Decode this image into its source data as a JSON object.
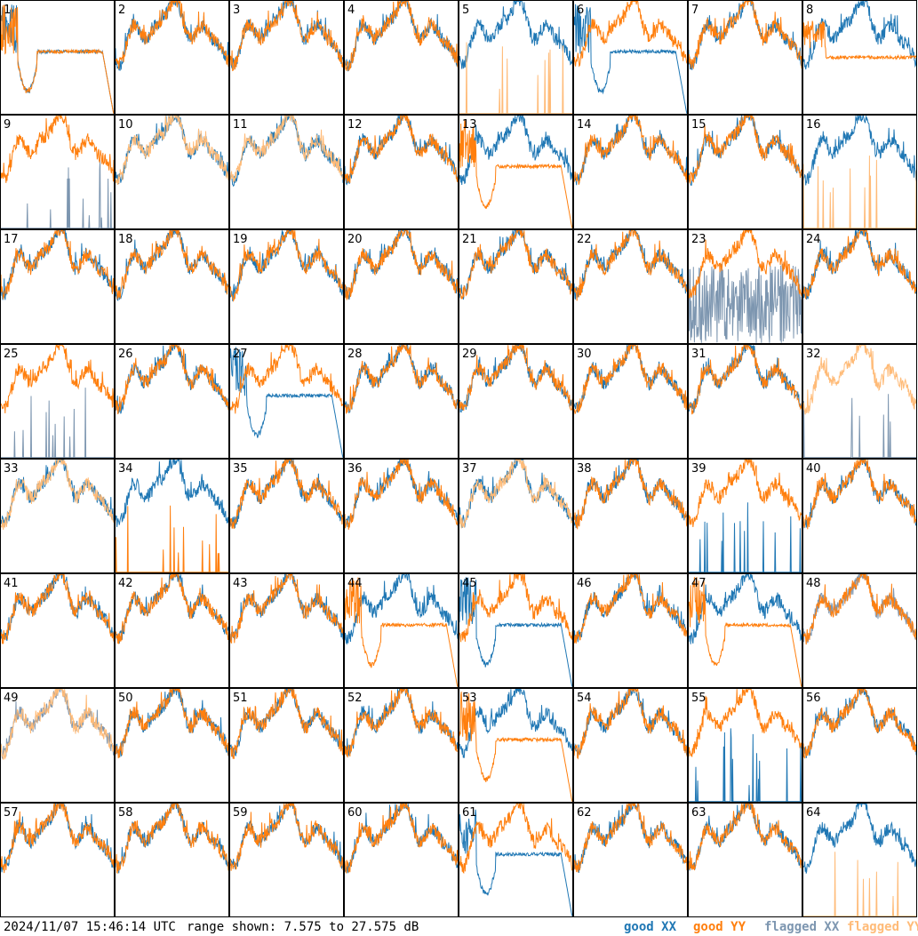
{
  "footer": {
    "timestamp": "2024/11/07 15:46:14 UTC",
    "range": "range shown: 7.575 to 27.575 dB",
    "legend": {
      "good_xx": "good XX",
      "good_yy": "good YY",
      "flagged_xx": "flagged XX",
      "flagged_yy": "flagged YY"
    }
  },
  "colors": {
    "good_xx": "#1f77b4",
    "good_yy": "#ff7f0e",
    "flagged_xx": "#7d96b0",
    "flagged_yy": "#ffbb78"
  },
  "chart_data": {
    "type": "line",
    "layout": "8x8 small multiples",
    "ylim": [
      7.575,
      27.575
    ],
    "yunit": "dB",
    "tiles": [
      {
        "label": "1",
        "xx": "good",
        "yy": "good",
        "xx_shape": "drooping",
        "yy_shape": "drooping"
      },
      {
        "label": "2",
        "xx": "good",
        "yy": "good",
        "xx_shape": "normal",
        "yy_shape": "normal"
      },
      {
        "label": "3",
        "xx": "good",
        "yy": "good",
        "xx_shape": "normal",
        "yy_shape": "normal"
      },
      {
        "label": "4",
        "xx": "good",
        "yy": "good",
        "xx_shape": "normal",
        "yy_shape": "normal"
      },
      {
        "label": "5",
        "xx": "good",
        "yy": "flagged",
        "xx_shape": "normal",
        "yy_shape": "spiky"
      },
      {
        "label": "6",
        "xx": "good",
        "yy": "good",
        "xx_shape": "drooping",
        "yy_shape": "normal"
      },
      {
        "label": "7",
        "xx": "good",
        "yy": "good",
        "xx_shape": "normal",
        "yy_shape": "normal"
      },
      {
        "label": "8",
        "xx": "good",
        "yy": "good",
        "xx_shape": "normal",
        "yy_shape": "flat"
      },
      {
        "label": "9",
        "xx": "flagged",
        "yy": "good",
        "xx_shape": "spiky",
        "yy_shape": "normal"
      },
      {
        "label": "10",
        "xx": "good",
        "yy": "flagged",
        "xx_shape": "normal",
        "yy_shape": "normal"
      },
      {
        "label": "11",
        "xx": "good",
        "yy": "flagged",
        "xx_shape": "normal",
        "yy_shape": "normal"
      },
      {
        "label": "12",
        "xx": "good",
        "yy": "good",
        "xx_shape": "normal",
        "yy_shape": "normal"
      },
      {
        "label": "13",
        "xx": "good",
        "yy": "good",
        "xx_shape": "normal",
        "yy_shape": "drooping"
      },
      {
        "label": "14",
        "xx": "good",
        "yy": "good",
        "xx_shape": "normal",
        "yy_shape": "normal"
      },
      {
        "label": "15",
        "xx": "good",
        "yy": "good",
        "xx_shape": "normal",
        "yy_shape": "normal"
      },
      {
        "label": "16",
        "xx": "good",
        "yy": "flagged",
        "xx_shape": "normal",
        "yy_shape": "spiky"
      },
      {
        "label": "17",
        "xx": "good",
        "yy": "good",
        "xx_shape": "normal",
        "yy_shape": "normal"
      },
      {
        "label": "18",
        "xx": "good",
        "yy": "good",
        "xx_shape": "normal",
        "yy_shape": "normal"
      },
      {
        "label": "19",
        "xx": "good",
        "yy": "good",
        "xx_shape": "normal",
        "yy_shape": "normal"
      },
      {
        "label": "20",
        "xx": "good",
        "yy": "good",
        "xx_shape": "normal",
        "yy_shape": "normal"
      },
      {
        "label": "21",
        "xx": "good",
        "yy": "good",
        "xx_shape": "normal",
        "yy_shape": "normal"
      },
      {
        "label": "22",
        "xx": "good",
        "yy": "good",
        "xx_shape": "normal",
        "yy_shape": "normal"
      },
      {
        "label": "23",
        "xx": "flagged",
        "yy": "good",
        "xx_shape": "noisy",
        "yy_shape": "normal"
      },
      {
        "label": "24",
        "xx": "good",
        "yy": "good",
        "xx_shape": "normal",
        "yy_shape": "normal"
      },
      {
        "label": "25",
        "xx": "flagged",
        "yy": "good",
        "xx_shape": "spiky",
        "yy_shape": "normal"
      },
      {
        "label": "26",
        "xx": "good",
        "yy": "good",
        "xx_shape": "normal",
        "yy_shape": "normal"
      },
      {
        "label": "27",
        "xx": "good",
        "yy": "good",
        "xx_shape": "drooping",
        "yy_shape": "normal"
      },
      {
        "label": "28",
        "xx": "good",
        "yy": "good",
        "xx_shape": "normal",
        "yy_shape": "normal"
      },
      {
        "label": "29",
        "xx": "good",
        "yy": "good",
        "xx_shape": "normal",
        "yy_shape": "normal"
      },
      {
        "label": "30",
        "xx": "good",
        "yy": "good",
        "xx_shape": "normal",
        "yy_shape": "normal"
      },
      {
        "label": "31",
        "xx": "good",
        "yy": "good",
        "xx_shape": "normal",
        "yy_shape": "normal"
      },
      {
        "label": "32",
        "xx": "flagged",
        "yy": "flagged",
        "xx_shape": "spiky",
        "yy_shape": "normal"
      },
      {
        "label": "33",
        "xx": "good",
        "yy": "flagged",
        "xx_shape": "normal",
        "yy_shape": "normal"
      },
      {
        "label": "34",
        "xx": "good",
        "yy": "good",
        "xx_shape": "normal",
        "yy_shape": "spiky"
      },
      {
        "label": "35",
        "xx": "good",
        "yy": "good",
        "xx_shape": "normal",
        "yy_shape": "normal"
      },
      {
        "label": "36",
        "xx": "good",
        "yy": "good",
        "xx_shape": "normal",
        "yy_shape": "normal"
      },
      {
        "label": "37",
        "xx": "good",
        "yy": "flagged",
        "xx_shape": "normal",
        "yy_shape": "normal"
      },
      {
        "label": "38",
        "xx": "good",
        "yy": "good",
        "xx_shape": "normal",
        "yy_shape": "normal"
      },
      {
        "label": "39",
        "xx": "good",
        "yy": "good",
        "xx_shape": "spiky",
        "yy_shape": "normal"
      },
      {
        "label": "40",
        "xx": "good",
        "yy": "good",
        "xx_shape": "normal",
        "yy_shape": "normal"
      },
      {
        "label": "41",
        "xx": "good",
        "yy": "good",
        "xx_shape": "normal",
        "yy_shape": "normal"
      },
      {
        "label": "42",
        "xx": "good",
        "yy": "good",
        "xx_shape": "normal",
        "yy_shape": "normal"
      },
      {
        "label": "43",
        "xx": "good",
        "yy": "good",
        "xx_shape": "normal",
        "yy_shape": "normal"
      },
      {
        "label": "44",
        "xx": "good",
        "yy": "good",
        "xx_shape": "normal",
        "yy_shape": "drooping"
      },
      {
        "label": "45",
        "xx": "good",
        "yy": "good",
        "xx_shape": "drooping",
        "yy_shape": "normal"
      },
      {
        "label": "46",
        "xx": "good",
        "yy": "good",
        "xx_shape": "normal",
        "yy_shape": "normal"
      },
      {
        "label": "47",
        "xx": "good",
        "yy": "good",
        "xx_shape": "normal",
        "yy_shape": "drooping"
      },
      {
        "label": "48",
        "xx": "flagged",
        "yy": "good",
        "xx_shape": "normal",
        "yy_shape": "normal"
      },
      {
        "label": "49",
        "xx": "flagged",
        "yy": "flagged",
        "xx_shape": "normal",
        "yy_shape": "normal"
      },
      {
        "label": "50",
        "xx": "good",
        "yy": "good",
        "xx_shape": "normal",
        "yy_shape": "normal"
      },
      {
        "label": "51",
        "xx": "good",
        "yy": "good",
        "xx_shape": "normal",
        "yy_shape": "normal"
      },
      {
        "label": "52",
        "xx": "good",
        "yy": "good",
        "xx_shape": "normal",
        "yy_shape": "normal"
      },
      {
        "label": "53",
        "xx": "good",
        "yy": "good",
        "xx_shape": "normal",
        "yy_shape": "drooping"
      },
      {
        "label": "54",
        "xx": "good",
        "yy": "good",
        "xx_shape": "normal",
        "yy_shape": "normal"
      },
      {
        "label": "55",
        "xx": "good",
        "yy": "good",
        "xx_shape": "spiky",
        "yy_shape": "normal"
      },
      {
        "label": "56",
        "xx": "good",
        "yy": "good",
        "xx_shape": "normal",
        "yy_shape": "normal"
      },
      {
        "label": "57",
        "xx": "good",
        "yy": "good",
        "xx_shape": "normal",
        "yy_shape": "normal"
      },
      {
        "label": "58",
        "xx": "good",
        "yy": "good",
        "xx_shape": "normal",
        "yy_shape": "normal"
      },
      {
        "label": "59",
        "xx": "good",
        "yy": "good",
        "xx_shape": "normal",
        "yy_shape": "normal"
      },
      {
        "label": "60",
        "xx": "good",
        "yy": "good",
        "xx_shape": "normal",
        "yy_shape": "normal"
      },
      {
        "label": "61",
        "xx": "good",
        "yy": "good",
        "xx_shape": "drooping",
        "yy_shape": "normal"
      },
      {
        "label": "62",
        "xx": "good",
        "yy": "good",
        "xx_shape": "normal",
        "yy_shape": "normal"
      },
      {
        "label": "63",
        "xx": "good",
        "yy": "good",
        "xx_shape": "normal",
        "yy_shape": "normal"
      },
      {
        "label": "64",
        "xx": "good",
        "yy": "flagged",
        "xx_shape": "normal",
        "yy_shape": "spiky"
      }
    ]
  }
}
